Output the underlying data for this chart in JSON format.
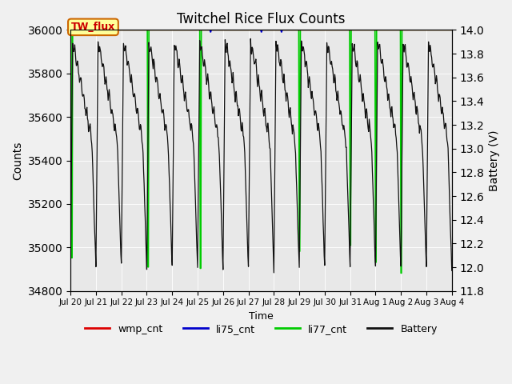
{
  "title": "Twitchel Rice Flux Counts",
  "xlabel": "Time",
  "ylabel_left": "Counts",
  "ylabel_right": "Battery (V)",
  "ylim_left": [
    34800,
    36000
  ],
  "ylim_right": [
    11.8,
    14.0
  ],
  "fig_facecolor": "#f0f0f0",
  "plot_facecolor": "#e8e8e8",
  "annotation_box": "TW_flux",
  "annotation_color": "#cc0000",
  "annotation_bg": "#ffff99",
  "annotation_border": "#cc6600",
  "legend_entries": [
    "wmp_cnt",
    "li75_cnt",
    "li77_cnt",
    "Battery"
  ],
  "legend_colors": [
    "#dd0000",
    "#0000cc",
    "#00cc00",
    "#111111"
  ],
  "xtick_labels": [
    "Jul 20",
    "Jul 21",
    "Jul 22",
    "Jul 23",
    "Jul 24",
    "Jul 25",
    "Jul 26",
    "Jul 27",
    "Jul 28",
    "Jul 29",
    "Jul 30",
    "Jul 31",
    "Aug 1",
    "Aug 2",
    "Aug 3",
    "Aug 4"
  ],
  "yticks_left": [
    34800,
    35000,
    35200,
    35400,
    35600,
    35800,
    36000
  ],
  "yticks_right": [
    11.8,
    12.0,
    12.2,
    12.4,
    12.6,
    12.8,
    13.0,
    13.2,
    13.4,
    13.6,
    13.8,
    14.0
  ],
  "grid_color": "white",
  "battery_color": "#111111",
  "li77_color": "#00cc00",
  "wmp_color": "#dd0000",
  "li75_color": "#0000cc"
}
